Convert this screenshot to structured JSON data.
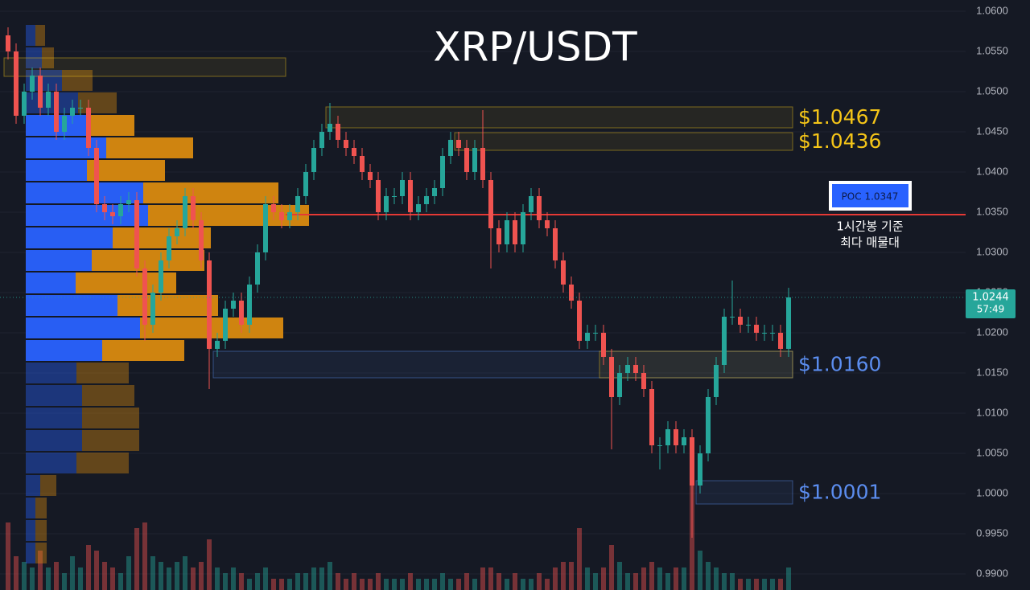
{
  "chart_data": {
    "type": "candlestick",
    "title": "XRP/USDT",
    "ylim": [
      0.988,
      1.0614
    ],
    "yticks": [
      {
        "value": 1.06,
        "label": "1.0600"
      },
      {
        "value": 1.055,
        "label": "1.0550"
      },
      {
        "value": 1.05,
        "label": "1.0500"
      },
      {
        "value": 1.045,
        "label": "1.0450"
      },
      {
        "value": 1.04,
        "label": "1.0400"
      },
      {
        "value": 1.035,
        "label": "1.0350"
      },
      {
        "value": 1.03,
        "label": "1.0300"
      },
      {
        "value": 1.025,
        "label": "1.0250"
      },
      {
        "value": 1.02,
        "label": "1.0200"
      },
      {
        "value": 1.015,
        "label": "1.0150"
      },
      {
        "value": 1.01,
        "label": "1.0100"
      },
      {
        "value": 1.005,
        "label": "1.0050"
      },
      {
        "value": 1.0,
        "label": "1.0000"
      },
      {
        "value": 0.995,
        "label": "0.9950"
      },
      {
        "value": 0.99,
        "label": "0.9900"
      }
    ],
    "grid": true,
    "up_color": "#26a69a",
    "down_color": "#ef5350",
    "open": [
      1.057,
      1.055,
      1.047,
      1.05,
      1.052,
      1.048,
      1.05,
      1.045,
      1.047,
      1.048,
      1.048,
      1.043,
      1.036,
      1.035,
      1.0345,
      1.036,
      1.0365,
      1.028,
      1.021,
      1.025,
      1.029,
      1.032,
      1.033,
      1.037,
      1.034,
      1.029,
      1.018,
      1.019,
      1.023,
      1.024,
      1.021,
      1.026,
      1.03,
      1.036,
      1.035,
      1.034,
      1.035,
      1.037,
      1.04,
      1.043,
      1.045,
      1.046,
      1.044,
      1.043,
      1.042,
      1.04,
      1.039,
      1.035,
      1.037,
      1.037,
      1.039,
      1.035,
      1.036,
      1.037,
      1.038,
      1.042,
      1.044,
      1.043,
      1.04,
      1.043,
      1.039,
      1.033,
      1.031,
      1.034,
      1.031,
      1.035,
      1.037,
      1.034,
      1.033,
      1.029,
      1.026,
      1.024,
      1.019,
      1.02,
      1.02,
      1.017,
      1.012,
      1.015,
      1.016,
      1.015,
      1.013,
      1.006,
      1.006,
      1.008,
      1.006,
      1.007,
      1.001,
      1.005,
      1.012,
      1.016,
      1.022,
      1.022,
      1.021,
      1.021,
      1.02,
      1.02,
      1.02,
      1.018
    ],
    "high": [
      1.058,
      1.056,
      1.051,
      1.053,
      1.053,
      1.051,
      1.051,
      1.048,
      1.049,
      1.049,
      1.049,
      1.044,
      1.037,
      1.036,
      1.037,
      1.0375,
      1.0375,
      1.029,
      1.026,
      1.03,
      1.033,
      1.034,
      1.038,
      1.038,
      1.035,
      1.03,
      1.02,
      1.024,
      1.025,
      1.025,
      1.027,
      1.031,
      1.037,
      1.037,
      1.036,
      1.036,
      1.038,
      1.041,
      1.044,
      1.046,
      1.0486,
      1.047,
      1.045,
      1.044,
      1.043,
      1.041,
      1.04,
      1.038,
      1.038,
      1.04,
      1.04,
      1.037,
      1.038,
      1.039,
      1.043,
      1.045,
      1.045,
      1.044,
      1.044,
      1.0477,
      1.04,
      1.034,
      1.035,
      1.035,
      1.036,
      1.038,
      1.038,
      1.035,
      1.034,
      1.03,
      1.027,
      1.025,
      1.021,
      1.021,
      1.021,
      1.018,
      1.016,
      1.017,
      1.017,
      1.016,
      1.014,
      1.007,
      1.009,
      1.009,
      1.008,
      1.008,
      1.006,
      1.013,
      1.017,
      1.023,
      1.0265,
      1.023,
      1.022,
      1.022,
      1.021,
      1.021,
      1.021,
      1.0256
    ],
    "low": [
      1.054,
      1.046,
      1.046,
      1.049,
      1.047,
      1.047,
      1.044,
      1.044,
      1.046,
      1.047,
      1.042,
      1.035,
      1.034,
      1.0335,
      1.0335,
      1.035,
      1.027,
      1.019,
      1.02,
      1.024,
      1.028,
      1.031,
      1.032,
      1.033,
      1.028,
      1.013,
      1.017,
      1.018,
      1.022,
      1.02,
      1.02,
      1.025,
      1.029,
      1.034,
      1.033,
      1.033,
      1.034,
      1.036,
      1.039,
      1.042,
      1.044,
      1.043,
      1.042,
      1.041,
      1.039,
      1.038,
      1.034,
      1.034,
      1.036,
      1.036,
      1.034,
      1.034,
      1.035,
      1.036,
      1.037,
      1.041,
      1.042,
      1.039,
      1.039,
      1.038,
      1.028,
      1.03,
      1.03,
      1.03,
      1.03,
      1.034,
      1.033,
      1.032,
      1.028,
      1.025,
      1.023,
      1.018,
      1.018,
      1.019,
      1.016,
      1.0055,
      1.011,
      1.014,
      1.014,
      1.012,
      1.005,
      1.003,
      1.005,
      1.005,
      1.005,
      0.9945,
      1.0,
      1.004,
      1.011,
      1.015,
      1.021,
      1.02,
      1.02,
      1.019,
      1.019,
      1.019,
      1.017,
      1.017
    ],
    "close": [
      1.055,
      1.047,
      1.05,
      1.052,
      1.048,
      1.05,
      1.045,
      1.047,
      1.048,
      1.048,
      1.043,
      1.036,
      1.035,
      1.0345,
      1.036,
      1.0365,
      1.028,
      1.021,
      1.025,
      1.029,
      1.032,
      1.033,
      1.037,
      1.034,
      1.029,
      1.018,
      1.019,
      1.023,
      1.024,
      1.021,
      1.026,
      1.03,
      1.036,
      1.035,
      1.034,
      1.035,
      1.037,
      1.04,
      1.043,
      1.045,
      1.046,
      1.044,
      1.043,
      1.042,
      1.04,
      1.039,
      1.035,
      1.037,
      1.037,
      1.039,
      1.035,
      1.036,
      1.037,
      1.038,
      1.042,
      1.044,
      1.043,
      1.04,
      1.043,
      1.039,
      1.033,
      1.031,
      1.034,
      1.031,
      1.035,
      1.037,
      1.034,
      1.033,
      1.029,
      1.026,
      1.024,
      1.019,
      1.02,
      1.02,
      1.017,
      1.012,
      1.015,
      1.016,
      1.015,
      1.013,
      1.006,
      1.006,
      1.008,
      1.006,
      1.007,
      1.001,
      1.005,
      1.012,
      1.016,
      1.022,
      1.022,
      1.021,
      1.021,
      1.02,
      1.02,
      1.02,
      1.018,
      1.0244
    ],
    "volume": [
      60,
      30,
      25,
      20,
      35,
      20,
      25,
      15,
      30,
      20,
      40,
      35,
      25,
      20,
      15,
      30,
      55,
      60,
      30,
      25,
      20,
      25,
      30,
      20,
      25,
      45,
      20,
      15,
      20,
      15,
      10,
      15,
      20,
      10,
      10,
      10,
      15,
      15,
      20,
      20,
      25,
      15,
      10,
      15,
      10,
      10,
      15,
      10,
      10,
      10,
      15,
      10,
      10,
      10,
      15,
      10,
      10,
      15,
      10,
      20,
      20,
      15,
      10,
      15,
      10,
      10,
      15,
      10,
      20,
      25,
      25,
      55,
      20,
      15,
      20,
      40,
      25,
      15,
      15,
      20,
      25,
      20,
      15,
      20,
      20,
      100,
      35,
      25,
      20,
      15,
      15,
      10,
      10,
      10,
      10,
      10,
      10,
      20
    ],
    "volume_profile": {
      "bins": [
        1.0584,
        1.0556,
        1.0528,
        1.05,
        1.0472,
        1.0444,
        1.0416,
        1.0388,
        1.036,
        1.0332,
        1.0304,
        1.0276,
        1.0248,
        1.022,
        1.0192,
        1.0164,
        1.0136,
        1.0108,
        1.008,
        1.0052,
        1.0024,
        0.9996,
        0.9968,
        0.994,
        0.9912
      ],
      "buy": [
        12,
        20,
        45,
        65,
        75,
        100,
        76,
        146,
        152,
        108,
        82,
        62,
        114,
        142,
        95,
        63,
        70,
        70,
        70,
        63,
        18,
        12,
        12,
        12
      ],
      "sell": [
        12,
        15,
        38,
        48,
        60,
        108,
        97,
        168,
        200,
        122,
        140,
        125,
        125,
        178,
        102,
        65,
        65,
        71,
        71,
        65,
        20,
        14,
        14,
        14
      ],
      "buy_color": "#2962ff",
      "sell_color": "#d98a10",
      "value_area": [
        4,
        14
      ]
    },
    "zones": [
      {
        "range": [
          1.0519,
          1.0542
        ],
        "from": 0,
        "to": 34,
        "color": "#f5c518"
      },
      {
        "label": "$1.0467",
        "range": [
          1.0455,
          1.0481
        ],
        "from": 40,
        "to": 97,
        "color": "#f5c518"
      },
      {
        "label": "$1.0436",
        "range": [
          1.0427,
          1.0449
        ],
        "from": 56,
        "to": 97,
        "color": "#f5c518"
      },
      {
        "label": "$1.0160",
        "range": [
          1.0144,
          1.0177
        ],
        "from": 26,
        "to": 97,
        "color": "#5b8def"
      },
      {
        "range": [
          1.0144,
          1.0177
        ],
        "from": 74,
        "to": 97,
        "color": "#f5c518"
      },
      {
        "label": "$1.0001",
        "range": [
          0.9987,
          1.0016
        ],
        "from": 86,
        "to": 97,
        "color": "#5b8def"
      }
    ],
    "poc": {
      "value": 1.0347,
      "label": "POC 1.0347",
      "note": [
        "1시간봉 기준",
        "최다 매물대"
      ],
      "color": "#e53935"
    },
    "last_price": {
      "value": 1.0244,
      "countdown": "57:49"
    }
  }
}
